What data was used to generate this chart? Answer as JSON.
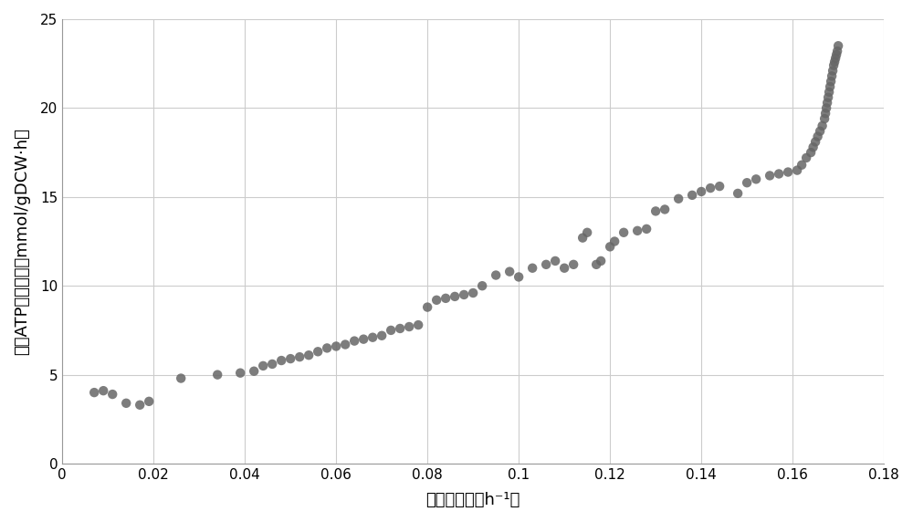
{
  "title": "",
  "xlabel": "比生长速率（h⁻¹）",
  "ylabel": "生成ATP通量之和（mmol/gDCW·h）",
  "xlim": [
    0,
    0.18
  ],
  "ylim": [
    0,
    25
  ],
  "xticks": [
    0,
    0.02,
    0.04,
    0.06,
    0.08,
    0.1,
    0.12,
    0.14,
    0.16,
    0.18
  ],
  "yticks": [
    0,
    5,
    10,
    15,
    20,
    25
  ],
  "dot_color": "#666666",
  "background_color": "#ffffff",
  "grid_color": "#cccccc",
  "x_data": [
    0.007,
    0.009,
    0.011,
    0.014,
    0.017,
    0.019,
    0.026,
    0.034,
    0.039,
    0.042,
    0.044,
    0.046,
    0.048,
    0.05,
    0.052,
    0.054,
    0.056,
    0.058,
    0.06,
    0.062,
    0.064,
    0.066,
    0.068,
    0.07,
    0.072,
    0.074,
    0.076,
    0.078,
    0.08,
    0.082,
    0.084,
    0.086,
    0.088,
    0.09,
    0.092,
    0.095,
    0.098,
    0.1,
    0.103,
    0.106,
    0.108,
    0.11,
    0.112,
    0.114,
    0.115,
    0.117,
    0.118,
    0.12,
    0.121,
    0.123,
    0.126,
    0.128,
    0.13,
    0.132,
    0.135,
    0.138,
    0.14,
    0.142,
    0.144,
    0.148,
    0.15,
    0.152,
    0.155,
    0.157,
    0.159,
    0.161,
    0.162,
    0.163,
    0.164,
    0.1645,
    0.165,
    0.1655,
    0.166,
    0.1665,
    0.167,
    0.1672,
    0.1674,
    0.1676,
    0.1678,
    0.168,
    0.1682,
    0.1684,
    0.1686,
    0.1688,
    0.169,
    0.1692,
    0.1694,
    0.1696,
    0.1698,
    0.17
  ],
  "y_data": [
    4.0,
    4.1,
    3.9,
    3.4,
    3.3,
    3.5,
    4.8,
    5.0,
    5.1,
    5.2,
    5.5,
    5.6,
    5.8,
    5.9,
    6.0,
    6.1,
    6.3,
    6.5,
    6.6,
    6.7,
    6.9,
    7.0,
    7.1,
    7.2,
    7.5,
    7.6,
    7.7,
    7.8,
    8.8,
    9.2,
    9.3,
    9.4,
    9.5,
    9.6,
    10.0,
    10.6,
    10.8,
    10.5,
    11.0,
    11.2,
    11.4,
    11.0,
    11.2,
    12.7,
    13.0,
    11.2,
    11.4,
    12.2,
    12.5,
    13.0,
    13.1,
    13.2,
    14.2,
    14.3,
    14.9,
    15.1,
    15.3,
    15.5,
    15.6,
    15.2,
    15.8,
    16.0,
    16.2,
    16.3,
    16.4,
    16.5,
    16.8,
    17.2,
    17.5,
    17.8,
    18.1,
    18.4,
    18.7,
    19.0,
    19.4,
    19.7,
    20.0,
    20.3,
    20.6,
    20.9,
    21.2,
    21.5,
    21.8,
    22.1,
    22.4,
    22.6,
    22.8,
    23.0,
    23.2,
    23.5
  ],
  "marker_size": 7
}
